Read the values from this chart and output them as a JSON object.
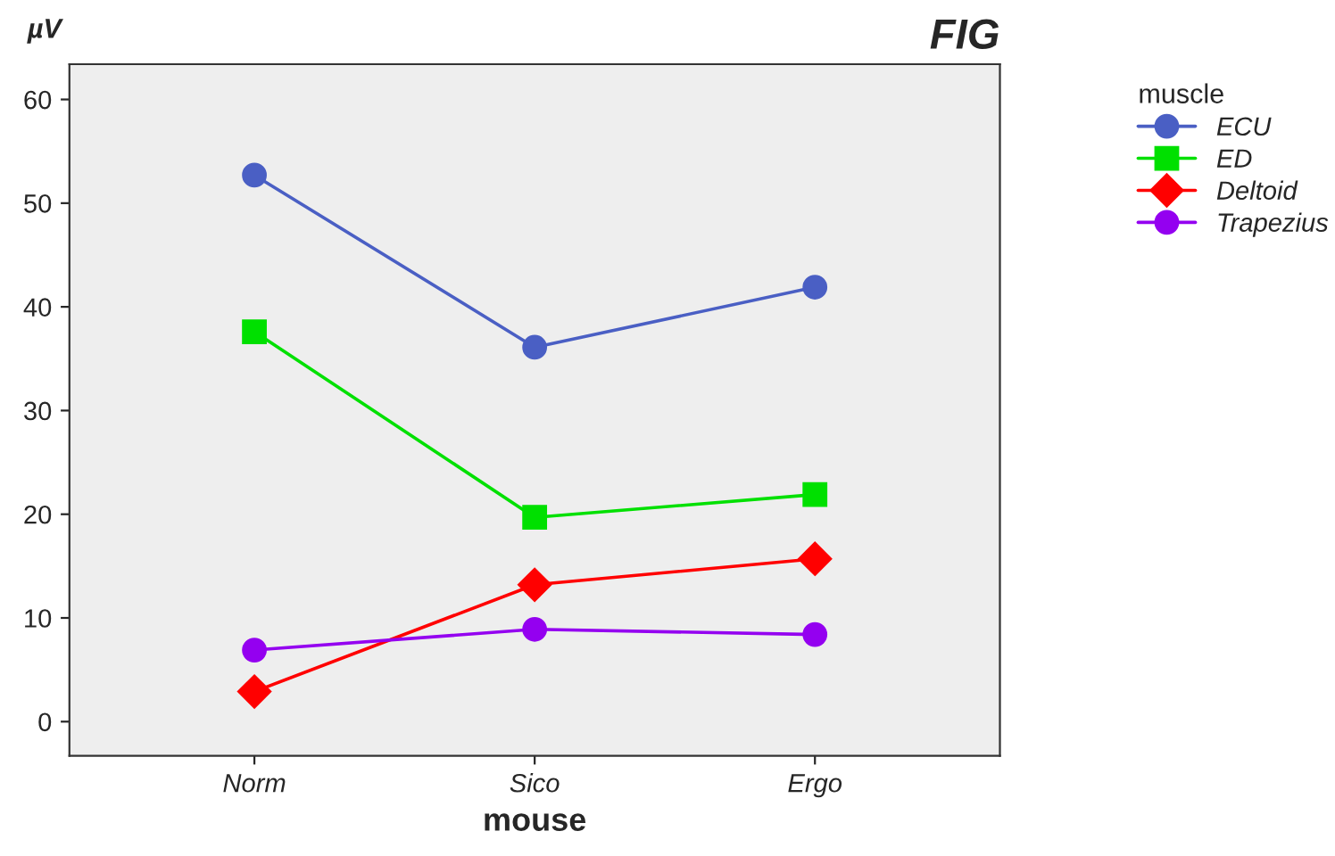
{
  "chart_data": {
    "type": "line",
    "title": "FIG",
    "ylabel": "µV",
    "xlabel": "mouse",
    "legend_title": "muscle",
    "categories": [
      "Norm",
      "Sico",
      "Ergo"
    ],
    "series": [
      {
        "name": "ECU",
        "color": "#4a5fc4",
        "marker": "circle",
        "values": [
          52.7,
          36.1,
          41.9
        ]
      },
      {
        "name": "ED",
        "color": "#00e000",
        "marker": "square",
        "values": [
          37.6,
          19.7,
          21.9
        ]
      },
      {
        "name": "Deltoid",
        "color": "#ff0000",
        "marker": "diamond",
        "values": [
          2.9,
          13.2,
          15.7
        ]
      },
      {
        "name": "Trapezius",
        "color": "#9400f0",
        "marker": "circle",
        "values": [
          6.9,
          8.9,
          8.4
        ]
      }
    ],
    "ylim": [
      -3.3,
      63.4
    ],
    "yticks": [
      0,
      10,
      20,
      30,
      40,
      50,
      60
    ],
    "grid": false,
    "legend": "right",
    "line_style": "solid"
  }
}
